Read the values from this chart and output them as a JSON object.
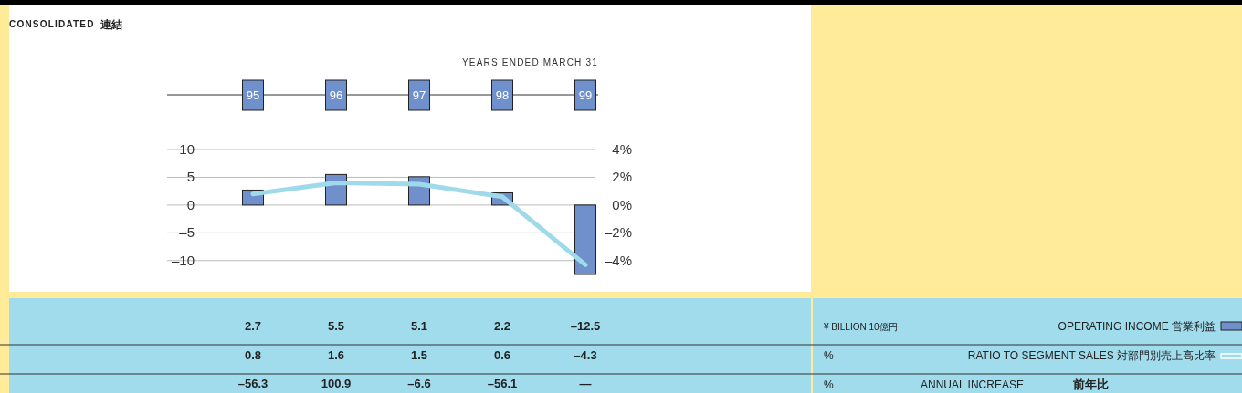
{
  "chart_data": {
    "type": "bar",
    "title": "CONSOLIDATED",
    "subtitle": "連結",
    "xlabel": "YEARS ENDED MARCH 31",
    "categories": [
      "95",
      "96",
      "97",
      "98",
      "99"
    ],
    "series": [
      {
        "name": "OPERATING INCOME 営業利益",
        "color": "#7090cc",
        "values": [
          2.7,
          5.5,
          5.1,
          2.2,
          -12.5
        ],
        "value_labels": [
          "2.7",
          "5.5",
          "5.1",
          "2.2",
          "–12.5"
        ]
      },
      {
        "name": "RATIO TO SEGMENT SALES 対部門別売上高比率",
        "type": "line",
        "axis": "y2",
        "color": "#9fdaeb",
        "values": [
          0.8,
          1.6,
          1.5,
          0.6,
          -4.3
        ],
        "value_labels": [
          "0.8",
          "1.6",
          "1.5",
          "0.6",
          "–4.3"
        ]
      }
    ],
    "ylim": [
      -12.5,
      10
    ],
    "yticks": [
      {
        "value": 10,
        "label": "10"
      },
      {
        "value": 5,
        "label": "5"
      },
      {
        "value": 0,
        "label": "0"
      },
      {
        "value": -5,
        "label": "–5"
      },
      {
        "value": -10,
        "label": "–10"
      }
    ],
    "y2lim": [
      -5,
      4
    ],
    "y2ticks": [
      {
        "value": 4,
        "label": "4%"
      },
      {
        "value": 2,
        "label": "2%"
      },
      {
        "value": 0,
        "label": "0%"
      },
      {
        "value": -2,
        "label": "–2%"
      },
      {
        "value": -4,
        "label": "–4%"
      }
    ],
    "grid": "y",
    "legend": "right",
    "annotations": [
      "¥ BILLION 10億円",
      "%",
      "%",
      "ANNUAL INCREASE",
      "前年比",
      "–56.3",
      "100.9",
      "–6.6",
      "–56.1",
      "—"
    ]
  }
}
